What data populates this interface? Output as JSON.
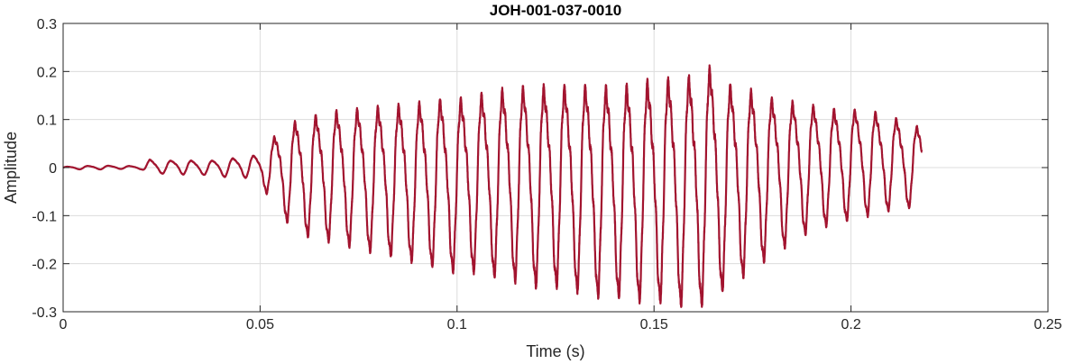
{
  "chart_data": {
    "type": "line",
    "title": "JOH-001-037-0010",
    "xlabel": "Time (s)",
    "ylabel": "Amplitude",
    "xlim": [
      0,
      0.25
    ],
    "ylim": [
      -0.3,
      0.3
    ],
    "xticks": [
      0,
      0.05,
      0.1,
      0.15,
      0.2,
      0.25
    ],
    "xtick_labels": [
      "0",
      "0.05",
      "0.1",
      "0.15",
      "0.2",
      "0.25"
    ],
    "yticks": [
      -0.3,
      -0.2,
      -0.1,
      0,
      0.1,
      0.2,
      0.3
    ],
    "ytick_labels": [
      "-0.3",
      "-0.2",
      "-0.1",
      "0",
      "0.1",
      "0.2",
      "0.3"
    ],
    "grid": true,
    "line_color": "#A2142F",
    "series": [
      {
        "x": [
          0,
          0.005,
          0.01,
          0.015,
          0.02,
          0.022,
          0.025,
          0.03,
          0.035,
          0.04,
          0.045,
          0.048,
          0.05,
          0.052,
          0.055,
          0.06,
          0.065,
          0.07,
          0.075,
          0.08,
          0.085,
          0.09,
          0.095,
          0.1,
          0.105,
          0.11,
          0.115,
          0.12,
          0.125,
          0.13,
          0.135,
          0.14,
          0.145,
          0.15,
          0.155,
          0.16,
          0.162,
          0.165,
          0.17,
          0.175,
          0.18,
          0.185,
          0.19,
          0.195,
          0.2,
          0.205,
          0.21,
          0.215,
          0.218
        ],
        "y_envelope_max": [
          0.002,
          0.004,
          0.005,
          0.004,
          0.004,
          0.02,
          0.015,
          0.02,
          0.015,
          0.02,
          0.025,
          0.03,
          0.03,
          0.06,
          0.09,
          0.12,
          0.13,
          0.14,
          0.145,
          0.15,
          0.155,
          0.16,
          0.17,
          0.17,
          0.18,
          0.19,
          0.2,
          0.2,
          0.205,
          0.2,
          0.21,
          0.2,
          0.21,
          0.22,
          0.225,
          0.23,
          0.24,
          0.25,
          0.2,
          0.19,
          0.17,
          0.16,
          0.15,
          0.14,
          0.14,
          0.135,
          0.12,
          0.11,
          0.09
        ],
        "y_envelope_min": [
          -0.003,
          -0.004,
          -0.004,
          -0.003,
          -0.004,
          -0.015,
          -0.013,
          -0.015,
          -0.015,
          -0.02,
          -0.02,
          -0.025,
          -0.03,
          -0.06,
          -0.1,
          -0.14,
          -0.15,
          -0.16,
          -0.17,
          -0.18,
          -0.19,
          -0.2,
          -0.21,
          -0.22,
          -0.22,
          -0.23,
          -0.24,
          -0.25,
          -0.25,
          -0.26,
          -0.27,
          -0.27,
          -0.28,
          -0.28,
          -0.29,
          -0.29,
          -0.29,
          -0.28,
          -0.24,
          -0.22,
          -0.18,
          -0.16,
          -0.13,
          -0.12,
          -0.11,
          -0.1,
          -0.09,
          -0.085,
          -0.07
        ],
        "fundamental_frequency_hz": 190
      }
    ]
  }
}
